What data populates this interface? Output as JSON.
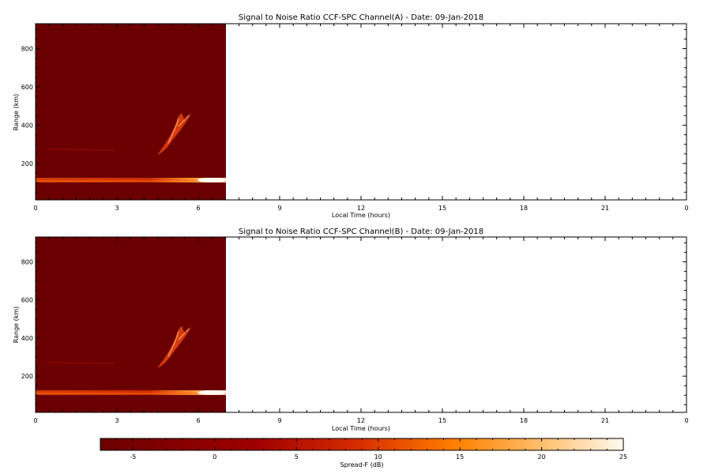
{
  "chart_data": [
    {
      "type": "heatmap",
      "title": "Signal to Noise Ratio CCF-SPC Channel(A) - Date: 09-Jan-2018",
      "xlabel": "Local Time (hours)",
      "ylabel": "Range (km)",
      "xlim": [
        0,
        24
      ],
      "ylim": [
        10,
        930
      ],
      "x_ticks": [
        "0",
        "3",
        "6",
        "9",
        "12",
        "15",
        "18",
        "21",
        "0"
      ],
      "y_ticks": [
        200,
        400,
        600,
        800
      ],
      "data_coverage_hours": [
        0,
        7
      ],
      "background_snr_db": -7,
      "features": [
        {
          "name": "E-layer band",
          "t_start": 0,
          "t_end": 7,
          "range_km": 110,
          "snr_db": [
            5,
            25
          ]
        },
        {
          "name": "weak trace",
          "t_start": 0.5,
          "t_end": 2.8,
          "range_km": 265,
          "snr_db": 2
        },
        {
          "name": "spread-F plume",
          "t_start": 4.5,
          "t_end": 5.7,
          "range_km": [
            240,
            460
          ],
          "snr_db": [
            8,
            18
          ]
        }
      ]
    },
    {
      "type": "heatmap",
      "title": "Signal to Noise Ratio CCF-SPC Channel(B) - Date: 09-Jan-2018",
      "xlabel": "Local Time (hours)",
      "ylabel": "Range (km)",
      "xlim": [
        0,
        24
      ],
      "ylim": [
        10,
        930
      ],
      "x_ticks": [
        "0",
        "3",
        "6",
        "9",
        "12",
        "15",
        "18",
        "21",
        "0"
      ],
      "y_ticks": [
        200,
        400,
        600,
        800
      ],
      "data_coverage_hours": [
        0,
        7
      ],
      "background_snr_db": -7,
      "features": [
        {
          "name": "E-layer band",
          "t_start": 0,
          "t_end": 7,
          "range_km": 110,
          "snr_db": [
            5,
            25
          ]
        },
        {
          "name": "weak trace",
          "t_start": 0.5,
          "t_end": 2.8,
          "range_km": 265,
          "snr_db": 2
        },
        {
          "name": "spread-F plume",
          "t_start": 4.5,
          "t_end": 5.7,
          "range_km": [
            240,
            460
          ],
          "snr_db": [
            8,
            18
          ]
        }
      ]
    }
  ],
  "colorbar": {
    "label": "Spread-F (dB)",
    "min": -7,
    "max": 25,
    "ticks": [
      -5,
      0,
      5,
      10,
      15,
      20,
      25
    ],
    "colormap": [
      "#6b0000",
      "#b00000",
      "#e04000",
      "#ff8000",
      "#ffc070",
      "#fffaf0"
    ]
  }
}
